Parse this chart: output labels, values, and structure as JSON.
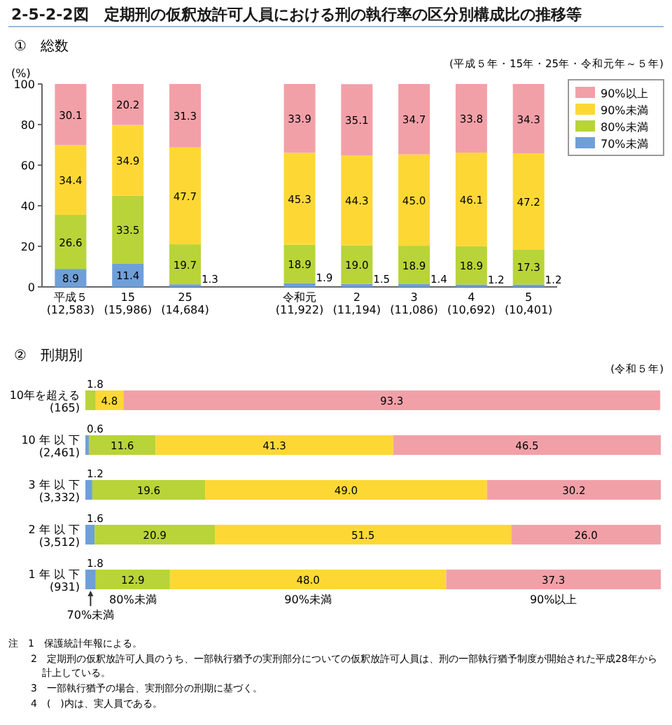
{
  "chart_data": [
    {
      "type": "bar",
      "stacked": true,
      "title": "2-5-2-2図　定期刑の仮釈放許可人員における刑の執行率の区分別構成比の推移等",
      "subtitle": "①　総数",
      "ylabel": "(%)",
      "annotations": [
        "(平成５年・15年・25年・令和元年～５年)"
      ],
      "categories": [
        "平成５\n(12,583)",
        "15\n(15,986)",
        "25\n(14,684)",
        null,
        "令和元\n(11,922)",
        "2\n(11,194)",
        "3\n(11,086)",
        "4\n(10,692)",
        "5\n(10,401)"
      ],
      "series": [
        {
          "name": "70%未満",
          "color": "#6f9fd8",
          "values": [
            8.9,
            11.4,
            1.3,
            null,
            1.9,
            1.5,
            1.4,
            1.2,
            1.2
          ],
          "value_labels": [
            "8.9",
            "11.4",
            "1.3",
            null,
            "1.9",
            "1.5",
            "1.4",
            "1.2",
            "1.2"
          ]
        },
        {
          "name": "80%未満",
          "color": "#b8d438",
          "values": [
            26.6,
            33.5,
            19.7,
            null,
            18.9,
            19.0,
            18.9,
            18.9,
            17.3
          ],
          "value_labels": [
            "26.6",
            "33.5",
            "19.7",
            null,
            "18.9",
            "19.0",
            "18.9",
            "18.9",
            "17.3"
          ]
        },
        {
          "name": "90%未満",
          "color": "#fdd835",
          "values": [
            34.4,
            34.9,
            47.7,
            null,
            45.3,
            44.3,
            45.0,
            46.1,
            47.2
          ],
          "value_labels": [
            "34.4",
            "34.9",
            "47.7",
            null,
            "45.3",
            "44.3",
            "45.0",
            "46.1",
            "47.2"
          ]
        },
        {
          "name": "90%以上",
          "color": "#f2a0a8",
          "values": [
            30.1,
            20.2,
            31.3,
            null,
            33.9,
            35.1,
            34.7,
            33.8,
            34.3
          ],
          "value_labels": [
            "30.1",
            "20.2",
            "31.3",
            null,
            "33.9",
            "35.1",
            "34.7",
            "33.8",
            "34.3"
          ]
        }
      ],
      "ylim": [
        0,
        100
      ],
      "yticks": [
        0,
        20,
        40,
        60,
        80,
        100
      ],
      "legend": "top right"
    },
    {
      "type": "bar",
      "stacked": true,
      "orientation": "horizontal",
      "title": "②　刑期別",
      "subtitle": "(令和５年)",
      "annotations": [
        "注　1　保護統計年報による。",
        "2　定期刑の仮釈放許可人員のうち、一部執行猶予の実刑部分についての仮釈放許可人員は、刑の一部執行猶予制度が開始された平成28年から計上している。",
        "3　一部執行猶予の場合、実刑部分の刑期に基づく。",
        "4　(　)内は、実人員である。"
      ],
      "categories": [
        "10年を超える\n(165)",
        "10 年 以 下\n(2,461)",
        "3 年 以 下\n(3,332)",
        "2 年 以 下\n(3,512)",
        "1 年 以 下\n(931)"
      ],
      "series": [
        {
          "name": "70%未満",
          "color": "#6f9fd8",
          "values": [
            null,
            0.6,
            1.2,
            1.6,
            1.8
          ],
          "value_labels": [
            null,
            "0.6",
            "1.2",
            "1.6",
            "1.8"
          ]
        },
        {
          "name": "80%未満",
          "color": "#b8d438",
          "values": [
            1.8,
            11.6,
            19.6,
            20.9,
            12.9
          ],
          "value_labels": [
            "1.8",
            "11.6",
            "19.6",
            "20.9",
            "12.9"
          ]
        },
        {
          "name": "90%未満",
          "color": "#fdd835",
          "values": [
            4.8,
            41.3,
            49.0,
            51.5,
            48.0
          ],
          "value_labels": [
            "4.8",
            "41.3",
            "49.0",
            "51.5",
            "48.0"
          ]
        },
        {
          "name": "90%以上",
          "color": "#f2a0a8",
          "values": [
            93.3,
            46.5,
            30.2,
            26.0,
            37.3
          ],
          "value_labels": [
            "93.3",
            "46.5",
            "30.2",
            "26.0",
            "37.3"
          ]
        }
      ],
      "xlim": [
        0,
        100
      ],
      "tick_labels": "y",
      "legend": false
    }
  ]
}
